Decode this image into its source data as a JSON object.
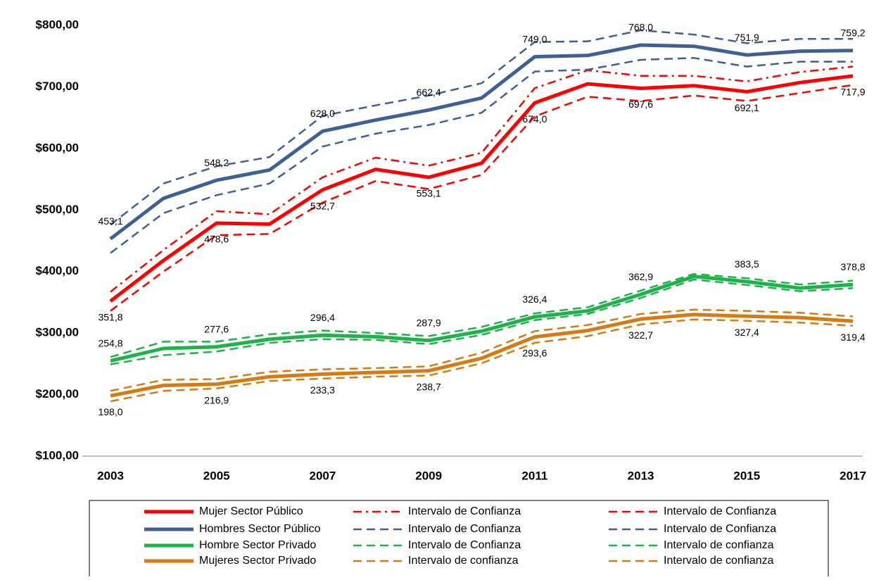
{
  "chart_data": {
    "type": "line",
    "categories": [
      "2003",
      null,
      "2005",
      null,
      "2007",
      null,
      "2009",
      null,
      "2011",
      null,
      "2013",
      null,
      "2015",
      null,
      "2017"
    ],
    "ylim": [
      100,
      800
    ],
    "yticks": [
      {
        "value": 100,
        "label": "$100,00"
      },
      {
        "value": 200,
        "label": "$200,00"
      },
      {
        "value": 300,
        "label": "$300,00"
      },
      {
        "value": 400,
        "label": "$400,00"
      },
      {
        "value": 500,
        "label": "$500,00"
      },
      {
        "value": 600,
        "label": "$600,00"
      },
      {
        "value": 700,
        "label": "$700,00"
      },
      {
        "value": 800,
        "label": "$800,00"
      }
    ],
    "grid": false,
    "series": [
      {
        "name": "Mujer Sector Público",
        "color": "#ff0000",
        "style": "solid",
        "values": [
          351.8,
          418,
          478.6,
          477,
          532.7,
          566,
          553.1,
          576,
          674.0,
          705,
          697.6,
          702,
          692.1,
          707,
          717.9
        ],
        "value_labels": [
          "351,8",
          null,
          "478,6",
          null,
          "532,7",
          null,
          "553,1",
          null,
          "674,0",
          null,
          "697,6",
          null,
          "692,1",
          null,
          "717,9"
        ]
      },
      {
        "name": "Hombres Sector Público",
        "color": "#3f5f95",
        "style": "solid",
        "values": [
          453.1,
          519,
          548.2,
          565,
          628.0,
          646,
          662.4,
          682,
          749.0,
          751,
          768.0,
          766,
          751.9,
          758,
          759.2
        ],
        "value_labels": [
          "453,1",
          null,
          "548,2",
          null,
          "628,0",
          null,
          "662,4",
          null,
          "749,0",
          null,
          "768,0",
          null,
          "751,9",
          null,
          "759,2"
        ]
      },
      {
        "name": "Hombre Sector Privado",
        "color": "#1fb24a",
        "style": "solid",
        "values": [
          254.8,
          275,
          277.6,
          290,
          296.4,
          294,
          287.9,
          303,
          326.4,
          336,
          362.9,
          392,
          383.5,
          373,
          378.8
        ],
        "value_labels": [
          "254,8",
          null,
          "277,6",
          null,
          "296,4",
          null,
          "287,9",
          null,
          "326,4",
          null,
          "362,9",
          null,
          "383,5",
          null,
          "378,8"
        ]
      },
      {
        "name": "Mujeres Sector Privado",
        "color": "#d67a14",
        "style": "solid",
        "values": [
          198.0,
          215,
          216.9,
          229,
          233.3,
          236,
          238.7,
          259,
          293.6,
          304,
          322.7,
          330,
          327.4,
          325,
          319.4
        ],
        "value_labels": [
          "198,0",
          null,
          "216,9",
          null,
          "233,3",
          null,
          "238,7",
          null,
          "293,6",
          null,
          "322,7",
          null,
          "327,4",
          null,
          "319,4"
        ]
      },
      {
        "name": "Intervalo de Confianza",
        "color": "#ff0000",
        "style": "dashdot",
        "values": [
          367,
          435,
          498,
          493,
          553,
          585,
          572,
          593,
          698,
          727,
          718,
          718,
          709,
          724,
          733
        ]
      },
      {
        "name": "Intervalo de Confianza",
        "color": "#3f5f95",
        "style": "dash",
        "values": [
          476,
          543,
          571,
          586,
          653,
          670,
          686,
          706,
          773,
          774,
          792,
          785,
          771,
          778,
          778
        ]
      },
      {
        "name": "Intervalo de Confianza",
        "color": "#1fb24a",
        "style": "dash",
        "values": [
          261,
          286,
          286,
          298,
          304,
          300,
          295,
          310,
          332,
          342,
          369,
          396,
          389,
          379,
          385
        ]
      },
      {
        "name": "Intervalo de confianza",
        "color": "#d67a14",
        "style": "dash",
        "values": [
          206,
          224,
          225,
          237,
          241,
          243,
          246,
          268,
          303,
          313,
          331,
          338,
          336,
          333,
          327
        ]
      },
      {
        "name": "Intervalo de Confianza",
        "color": "#ff0000",
        "style": "dash",
        "values": [
          336,
          400,
          459,
          461,
          512,
          547,
          534,
          557,
          652,
          684,
          677,
          686,
          677,
          690,
          703
        ]
      },
      {
        "name": "Intervalo de Confianza",
        "color": "#3f5f95",
        "style": "dash",
        "values": [
          430,
          495,
          524,
          543,
          603,
          624,
          638,
          658,
          725,
          728,
          744,
          747,
          733,
          741,
          741
        ]
      },
      {
        "name": "Intervalo de confianza",
        "color": "#1fb24a",
        "style": "dash",
        "values": [
          249,
          264,
          270,
          284,
          290,
          289,
          282,
          297,
          321,
          331,
          357,
          387,
          378,
          368,
          373
        ]
      },
      {
        "name": "Intervalo de confianza",
        "color": "#d67a14",
        "style": "dash",
        "values": [
          189,
          206,
          210,
          222,
          226,
          229,
          231,
          251,
          284,
          295,
          314,
          322,
          320,
          317,
          312
        ]
      }
    ]
  }
}
